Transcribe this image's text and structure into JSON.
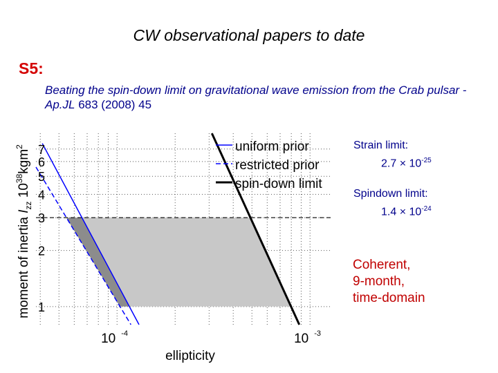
{
  "header": {
    "title": "CW observational papers to date",
    "section": "S5:",
    "reference_italic": "Beating the spin-down limit on gravitational wave emission from the Crab pulsar - Ap.",
    "reference_journal": "JL",
    "reference_tail": " 683 (2008) 45"
  },
  "notes": {
    "strain_label": "Strain limit:",
    "strain_mantissa": "2.7 × 10",
    "strain_exp": "-25",
    "spindown_label": "Spindown limit:",
    "spindown_mantissa": "1.4 × 10",
    "spindown_exp": "-24",
    "method_lines": [
      "Coherent,",
      "9-month,",
      "time-domain"
    ]
  },
  "chart_data": {
    "type": "line",
    "xlabel": "ellipticity",
    "ylabel": "moment of inertia  I_zz 10^38 kgm^2",
    "xscale": "log",
    "yscale": "log",
    "xlim": [
      3.8e-05,
      0.0013
    ],
    "ylim": [
      0.8,
      8.5
    ],
    "xticks": [
      {
        "value": 0.0001,
        "base": "10",
        "exp": "-4"
      },
      {
        "value": 0.001,
        "base": "10",
        "exp": "-3"
      }
    ],
    "yticks": [
      {
        "value": 1,
        "label": "1"
      },
      {
        "value": 2,
        "label": "2"
      },
      {
        "value": 3,
        "label": "3"
      },
      {
        "value": 4,
        "label": "4"
      },
      {
        "value": 5,
        "label": "5"
      },
      {
        "value": 6,
        "label": "6"
      },
      {
        "value": 7,
        "label": "7"
      }
    ],
    "grid": true,
    "reference_lines": [
      {
        "orientation": "horizontal",
        "y": 3,
        "style": "dashed"
      }
    ],
    "series": [
      {
        "name": "uniform prior",
        "style": "solid",
        "color": "#0000ff",
        "points": [
          [
            4.1e-05,
            7.5
          ],
          [
            0.00013,
            0.8
          ]
        ]
      },
      {
        "name": "restricted prior",
        "style": "dashed",
        "color": "#0000ff",
        "points": [
          [
            3.8e-05,
            5.6
          ],
          [
            0.000118,
            0.8
          ]
        ]
      },
      {
        "name": "spin-down limit",
        "style": "solid-thick",
        "color": "#000000",
        "points": [
          [
            0.00031,
            8.5
          ],
          [
            0.00088,
            0.8
          ]
        ]
      }
    ],
    "shaded_regions": [
      {
        "color": "#c8c8c8",
        "y_range": [
          1,
          3
        ],
        "between": [
          "uniform prior",
          "spin-down limit"
        ]
      },
      {
        "color": "#8c8c8c",
        "y_range": [
          1,
          3
        ],
        "between": [
          "restricted prior",
          "uniform prior"
        ]
      }
    ],
    "legend": {
      "position": "top-right"
    }
  }
}
